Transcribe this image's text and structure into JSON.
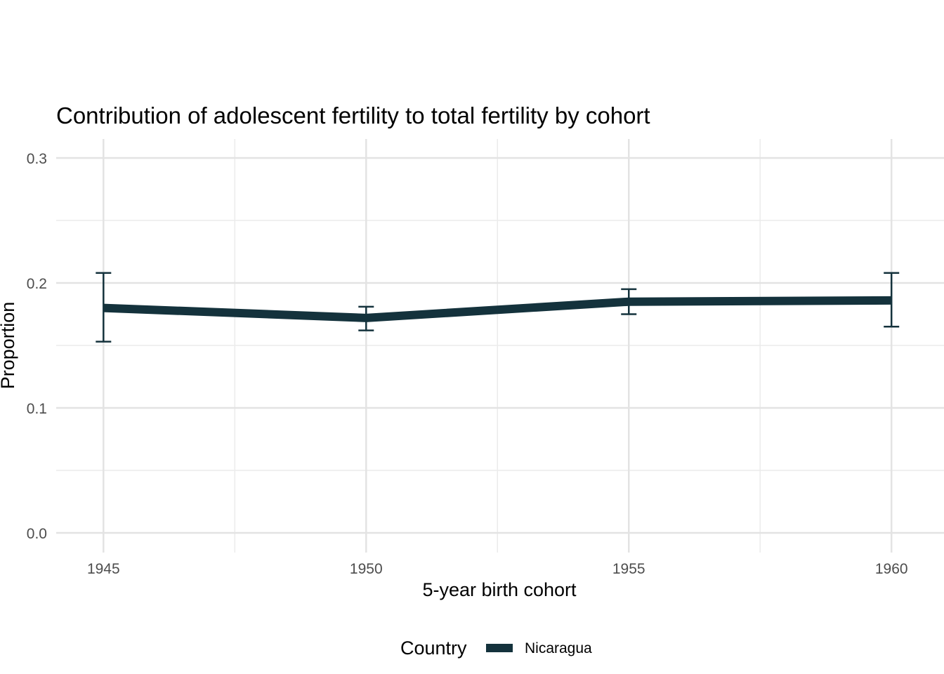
{
  "chart_data": {
    "type": "line",
    "title": "Contribution of adolescent fertility to total fertility by cohort",
    "xlabel": "5-year birth cohort",
    "ylabel": "Proportion",
    "x": [
      1945,
      1950,
      1955,
      1960
    ],
    "x_ticks": [
      "1945",
      "1950",
      "1955",
      "1960"
    ],
    "y_ticks": [
      "0.0",
      "0.1",
      "0.2",
      "0.3"
    ],
    "ylim": [
      0,
      0.3
    ],
    "xlim": [
      1944.1,
      1961
    ],
    "grid": true,
    "legend_title": "Country",
    "legend_position": "bottom",
    "series": [
      {
        "name": "Nicaragua",
        "color": "#14323c",
        "values": [
          0.18,
          0.172,
          0.185,
          0.186
        ],
        "error_low": [
          0.153,
          0.162,
          0.175,
          0.165
        ],
        "error_high": [
          0.208,
          0.181,
          0.195,
          0.208
        ]
      }
    ]
  }
}
